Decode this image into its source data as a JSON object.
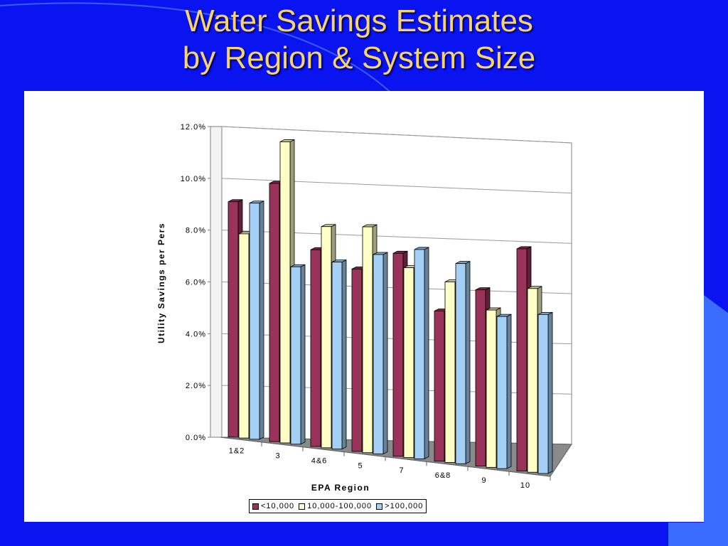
{
  "slide": {
    "title_line1": "Water Savings Estimates",
    "title_line2": "by Region & System Size"
  },
  "chart_data": {
    "type": "bar",
    "style": "3d-clustered-column",
    "categories": [
      "1&2",
      "3",
      "4&6",
      "5",
      "7",
      "6&8",
      "9",
      "10"
    ],
    "series": [
      {
        "name": "<10,000",
        "color": "#99335a",
        "values": [
          9.0,
          9.8,
          7.4,
          6.8,
          7.5,
          5.5,
          6.4,
          8.0
        ]
      },
      {
        "name": "10,000-100,000",
        "color": "#ffffc6",
        "values": [
          7.8,
          11.4,
          8.3,
          8.4,
          7.0,
          6.6,
          5.7,
          6.6
        ]
      },
      {
        "name": ">100,000",
        "color": "#a4d0f5",
        "values": [
          9.0,
          6.7,
          7.0,
          7.4,
          7.7,
          7.3,
          5.5,
          5.7
        ]
      }
    ],
    "y_ticks": [
      "0.0%",
      "2.0%",
      "4.0%",
      "6.0%",
      "8.0%",
      "10.0%",
      "12.0%"
    ],
    "ylim": [
      0,
      12
    ],
    "xlabel": "EPA Region",
    "ylabel": "Utility Savings per Pers",
    "grid": true,
    "legend_position": "bottom"
  },
  "colors": {
    "background": "#0a14f0",
    "title": "#f7d36b",
    "panel": "#ffffff"
  }
}
